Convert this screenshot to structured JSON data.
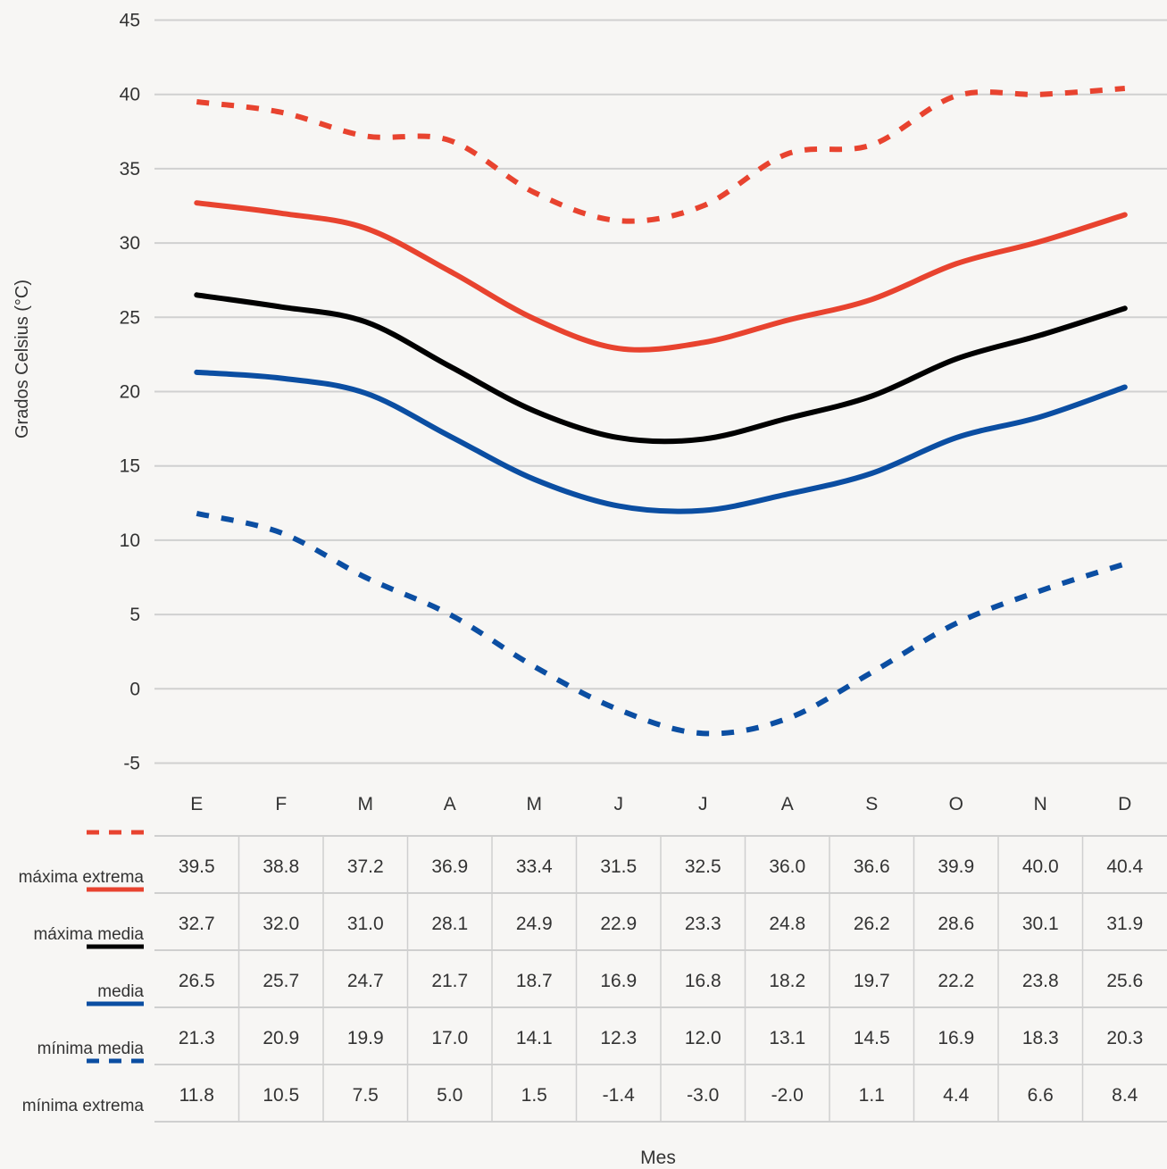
{
  "chart_data": {
    "type": "line",
    "xlabel": "Mes",
    "ylabel": "Grados Celsius (°C)",
    "ylim": [
      -5,
      45
    ],
    "yticks": [
      -5,
      0,
      5,
      10,
      15,
      20,
      25,
      30,
      35,
      40,
      45
    ],
    "grid": "horizontal",
    "categories": [
      "E",
      "F",
      "M",
      "A",
      "M",
      "J",
      "J",
      "A",
      "S",
      "O",
      "N",
      "D"
    ],
    "series": [
      {
        "name": "máxima extrema",
        "color": "#e8432f",
        "style": "dashed",
        "values": [
          39.5,
          38.8,
          37.2,
          36.9,
          33.4,
          31.5,
          32.5,
          36.0,
          36.6,
          39.9,
          40.0,
          40.4
        ]
      },
      {
        "name": "máxima media",
        "color": "#e8432f",
        "style": "solid",
        "values": [
          32.7,
          32.0,
          31.0,
          28.1,
          24.9,
          22.9,
          23.3,
          24.8,
          26.2,
          28.6,
          30.1,
          31.9
        ]
      },
      {
        "name": "media",
        "color": "#000000",
        "style": "solid",
        "values": [
          26.5,
          25.7,
          24.7,
          21.7,
          18.7,
          16.9,
          16.8,
          18.2,
          19.7,
          22.2,
          23.8,
          25.6
        ]
      },
      {
        "name": "mínima media",
        "color": "#0b4ea2",
        "style": "solid",
        "values": [
          21.3,
          20.9,
          19.9,
          17.0,
          14.1,
          12.3,
          12.0,
          13.1,
          14.5,
          16.9,
          18.3,
          20.3
        ]
      },
      {
        "name": "mínima extrema",
        "color": "#0b4ea2",
        "style": "dashed",
        "values": [
          11.8,
          10.5,
          7.5,
          5.0,
          1.5,
          -1.4,
          -3.0,
          -2.0,
          1.1,
          4.4,
          6.6,
          8.4
        ]
      }
    ]
  }
}
